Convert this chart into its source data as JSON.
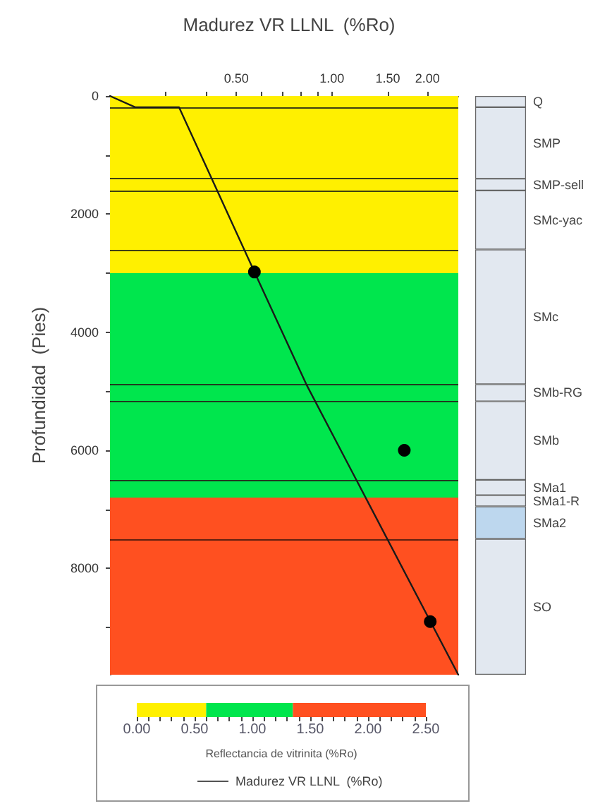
{
  "chart_data": [
    {
      "type": "line",
      "title": "Madurez VR LLNL  (%Ro)",
      "ylabel": "Profundidad  (Pies)",
      "series": [
        {
          "name": "Madurez VR LLNL  (%Ro)",
          "color": "#1a1a1a",
          "x": [
            0.2,
            0.24,
            0.33,
            0.57,
            0.83,
            2.5
          ],
          "values": [
            0,
            190,
            190,
            2980,
            4880,
            9800
          ]
        },
        {
          "type": "scatter",
          "color": "#000000",
          "x": [
            0.57,
            1.69,
            2.04
          ],
          "values": [
            2980,
            6000,
            8900
          ]
        }
      ],
      "log": "x",
      "xlim": [
        0.2,
        2.5
      ],
      "xticks": [
        {
          "value": 0.3,
          "label": null
        },
        {
          "value": 0.4,
          "label": null
        },
        {
          "value": 0.5,
          "label": "0.50"
        },
        {
          "value": 0.6,
          "label": null
        },
        {
          "value": 0.7,
          "label": null
        },
        {
          "value": 0.8,
          "label": null
        },
        {
          "value": 0.9,
          "label": null
        },
        {
          "value": 1,
          "label": "1.00"
        },
        {
          "value": 1.5,
          "label": "1.50"
        },
        {
          "value": 2,
          "label": "2.00"
        }
      ],
      "ylim": [
        9800,
        0
      ],
      "yticks": [
        0,
        {
          "value": 1000,
          "label": null
        },
        2000,
        {
          "value": 3000,
          "label": null
        },
        4000,
        {
          "value": 5000,
          "label": null
        },
        6000,
        {
          "value": 7000,
          "label": null
        },
        8000,
        {
          "value": 9000,
          "label": null
        }
      ],
      "bands": [
        {
          "axis": "y",
          "from": 0,
          "to": 3000,
          "color": "#fff000"
        },
        {
          "axis": "y",
          "from": 3000,
          "to": 6800,
          "color": "#00e64d"
        },
        {
          "axis": "y",
          "from": 6800,
          "to": 9800,
          "color": "#ff5020"
        }
      ],
      "ref_lines": [
        {
          "axis": "y",
          "value": 190,
          "color": "#404010"
        },
        {
          "axis": "y",
          "value": 1400,
          "color": "#404010"
        },
        {
          "axis": "y",
          "value": 1600,
          "color": "#404010"
        },
        {
          "axis": "y",
          "value": 2600,
          "color": "#404010"
        },
        {
          "axis": "y",
          "value": 4880,
          "color": "#203a20"
        },
        {
          "axis": "y",
          "value": 5170,
          "color": "#203a20"
        },
        {
          "axis": "y",
          "value": 6500,
          "color": "#203a20"
        },
        {
          "axis": "y",
          "value": 7500,
          "color": "#602010"
        }
      ],
      "line_style": "solid",
      "legend": "bottom"
    },
    {
      "type": "bar",
      "stacked": true,
      "categories": [
        null
      ],
      "ylim": [
        9800,
        0
      ],
      "tick_labels": false,
      "series": [
        {
          "name": "Q",
          "color": "#e2e8f0",
          "values": [
            190
          ]
        },
        {
          "name": "SMP",
          "color": "#e2e8f0",
          "values": [
            1210
          ]
        },
        {
          "name": "SMP-sell",
          "color": "#e2e8f0",
          "values": [
            200
          ]
        },
        {
          "name": "SMc-yac",
          "color": "#e2e8f0",
          "values": [
            1000
          ]
        },
        {
          "name": "SMc",
          "color": "#e2e8f0",
          "values": [
            2280
          ]
        },
        {
          "name": "SMb-RG",
          "color": "#e2e8f0",
          "values": [
            290
          ]
        },
        {
          "name": "SMb",
          "color": "#e2e8f0",
          "values": [
            1330
          ]
        },
        {
          "name": "SMa1",
          "color": "#e2e8f0",
          "values": [
            260
          ]
        },
        {
          "name": "SMa1-R",
          "color": "#e2e8f0",
          "values": [
            190
          ]
        },
        {
          "name": "SMa2",
          "color": "#bdd7ee",
          "values": [
            550
          ]
        },
        {
          "name": "SO",
          "color": "#e2e8f0",
          "values": [
            2300
          ]
        }
      ]
    },
    {
      "type": "bar",
      "orientation": "horizontal",
      "stacked": true,
      "categories": [
        null
      ],
      "xlabel": "Reflectancia de vitrinita (%Ro)",
      "series": [
        {
          "color": "#fff000",
          "values": [
            0.6
          ]
        },
        {
          "color": "#00e64d",
          "values": [
            0.75
          ]
        },
        {
          "color": "#ff5020",
          "values": [
            1.15
          ]
        }
      ],
      "xlim": [
        0,
        2.5
      ],
      "xticks": [
        {
          "value": 0,
          "label": "0.00"
        },
        {
          "value": 0.1,
          "label": null
        },
        {
          "value": 0.2,
          "label": null
        },
        {
          "value": 0.3,
          "label": null
        },
        {
          "value": 0.4,
          "label": null
        },
        {
          "value": 0.5,
          "label": "0.50"
        },
        {
          "value": 0.6,
          "label": null
        },
        {
          "value": 0.7,
          "label": null
        },
        {
          "value": 0.8,
          "label": null
        },
        {
          "value": 0.9,
          "label": null
        },
        {
          "value": 1,
          "label": "1.00"
        },
        {
          "value": 1.1,
          "label": null
        },
        {
          "value": 1.2,
          "label": null
        },
        {
          "value": 1.3,
          "label": null
        },
        {
          "value": 1.4,
          "label": null
        },
        {
          "value": 1.5,
          "label": "1.50"
        },
        {
          "value": 1.6,
          "label": null
        },
        {
          "value": 1.7,
          "label": null
        },
        {
          "value": 1.8,
          "label": null
        },
        {
          "value": 1.9,
          "label": null
        },
        {
          "value": 2,
          "label": "2.00"
        },
        {
          "value": 2.1,
          "label": null
        },
        {
          "value": 2.2,
          "label": null
        },
        {
          "value": 2.3,
          "label": null
        },
        {
          "value": 2.4,
          "label": null
        },
        {
          "value": 2.5,
          "label": "2.50"
        }
      ],
      "tick_labels": "x"
    }
  ]
}
